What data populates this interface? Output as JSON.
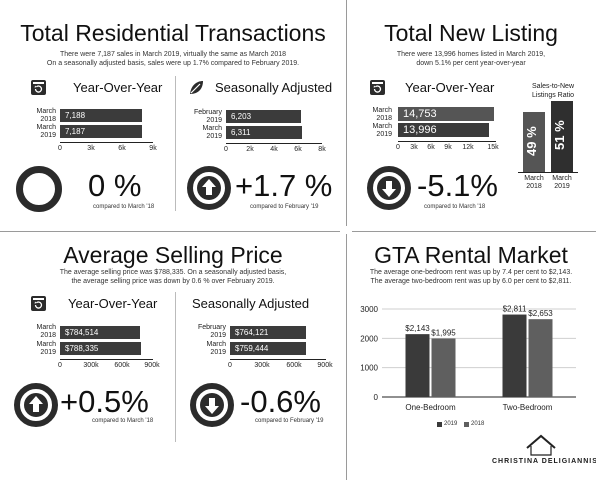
{
  "colors": {
    "bar_dark": "#3b3b3b",
    "bar_2019": "#3a3a3a",
    "bar_2018": "#5f5f5f",
    "text": "#111111"
  },
  "q1": {
    "title": "Total Residential Transactions",
    "sub1": "There were 7,187 sales in March 2019, virtually the same as March 2018",
    "sub2": "On a seasonally adjusted basis, sales were up 1.7% compared to February 2019.",
    "left": {
      "label": "Year-Over-Year",
      "icon": "calendar-refresh-icon",
      "big": "0 %",
      "note": "compared to March '18"
    },
    "right": {
      "label": "Seasonally Adjusted",
      "icon": "leaf-icon",
      "big": "+1.7 %",
      "note": "compared to February '19"
    }
  },
  "q2": {
    "title": "Total New Listing",
    "sub1": "There were 13,996 homes listed in March 2019,",
    "sub2": "down 5.1% per cent year-over-year",
    "label": "Year-Over-Year",
    "big": "-5.1%",
    "note": "compared to March '18",
    "ratio_title1": "Sales-to-New",
    "ratio_title2": "Listings Ratio"
  },
  "q3": {
    "title": "Average Selling Price",
    "sub1": "The average selling price was $788,335. On a seasonally adjusted basis,",
    "sub2": "the average selling price was down by 0.6 % over February 2019.",
    "left": {
      "label": "Year-Over-Year",
      "big": "+0.5%",
      "note": "compared to March '18"
    },
    "right": {
      "label": "Seasonally Adjusted",
      "big": "-0.6%",
      "note": "compared to February '19"
    }
  },
  "q4": {
    "title": "GTA Rental Market",
    "sub1": "The average one-bedroom rent was up by 7.4 per cent to $2,143.",
    "sub2": "The average two-bedroom rent was up by 6.0 per cent to $2,811.",
    "brand": "CHRISTINA DELIGIANNIS"
  },
  "chart_data": [
    {
      "type": "bar",
      "orientation": "horizontal",
      "categories": [
        "March 2018",
        "March 2019"
      ],
      "values": [
        7188,
        7187
      ],
      "value_labels": [
        "7,188",
        "7,187"
      ],
      "xlim": [
        0,
        9000
      ],
      "ticks": [
        "0",
        "3k",
        "6k",
        "9k"
      ]
    },
    {
      "type": "bar",
      "orientation": "horizontal",
      "categories": [
        "February 2019",
        "March 2019"
      ],
      "values": [
        6203,
        6311
      ],
      "value_labels": [
        "6,203",
        "6,311"
      ],
      "xlim": [
        0,
        8000
      ],
      "ticks": [
        "0",
        "2k",
        "4k",
        "6k",
        "8k"
      ]
    },
    {
      "type": "bar",
      "orientation": "horizontal",
      "categories": [
        "March 2018",
        "March 2019"
      ],
      "values": [
        14753,
        13996
      ],
      "value_labels": [
        "14,753",
        "13,996"
      ],
      "xlim": [
        0,
        15000
      ],
      "ticks": [
        "0",
        "3k",
        "6k",
        "9k",
        "12k",
        "15k"
      ]
    },
    {
      "type": "bar",
      "orientation": "vertical",
      "title": "Sales-to-New Listings Ratio",
      "categories": [
        "March 2018",
        "March 2019"
      ],
      "values": [
        49,
        51
      ],
      "value_labels": [
        "49 %",
        "51 %"
      ]
    },
    {
      "type": "bar",
      "orientation": "horizontal",
      "categories": [
        "March 2018",
        "March 2019"
      ],
      "values": [
        784514,
        788335
      ],
      "value_labels": [
        "$784,514",
        "$788,335"
      ],
      "xlim": [
        0,
        900000
      ],
      "ticks": [
        "0",
        "300k",
        "600k",
        "900k"
      ]
    },
    {
      "type": "bar",
      "orientation": "horizontal",
      "categories": [
        "February 2019",
        "March 2019"
      ],
      "values": [
        764121,
        759444
      ],
      "value_labels": [
        "$764,121",
        "$759,444"
      ],
      "xlim": [
        0,
        900000
      ],
      "ticks": [
        "0",
        "300k",
        "600k",
        "900k"
      ]
    },
    {
      "type": "bar",
      "orientation": "vertical",
      "categories": [
        "One-Bedroom",
        "Two-Bedroom"
      ],
      "series": [
        {
          "name": "2019",
          "values": [
            2143,
            2811
          ],
          "labels": [
            "$2,143",
            "$2,811"
          ]
        },
        {
          "name": "2018",
          "values": [
            1995,
            2653
          ],
          "labels": [
            "$1,995",
            "$2,653"
          ]
        }
      ],
      "ylim": [
        0,
        3000
      ],
      "yticks": [
        "0",
        "1000",
        "2000",
        "3000"
      ],
      "legend": "bottom"
    }
  ]
}
